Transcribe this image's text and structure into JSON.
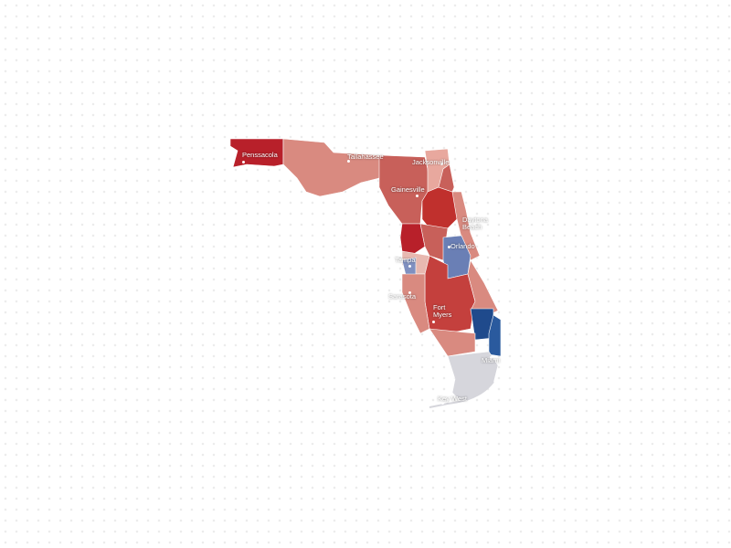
{
  "map": {
    "cities": [
      {
        "label": "Penssacola"
      },
      {
        "label": "Tallahassee"
      },
      {
        "label": "Jacksonville"
      },
      {
        "label": "Gainesville"
      },
      {
        "label": "Daytona Beach"
      },
      {
        "label": "Orlando"
      },
      {
        "label": "Tampa"
      },
      {
        "label": "Sarasota"
      },
      {
        "label": "Fort Myers"
      },
      {
        "label": "Miami"
      },
      {
        "label": "Key West"
      }
    ]
  }
}
